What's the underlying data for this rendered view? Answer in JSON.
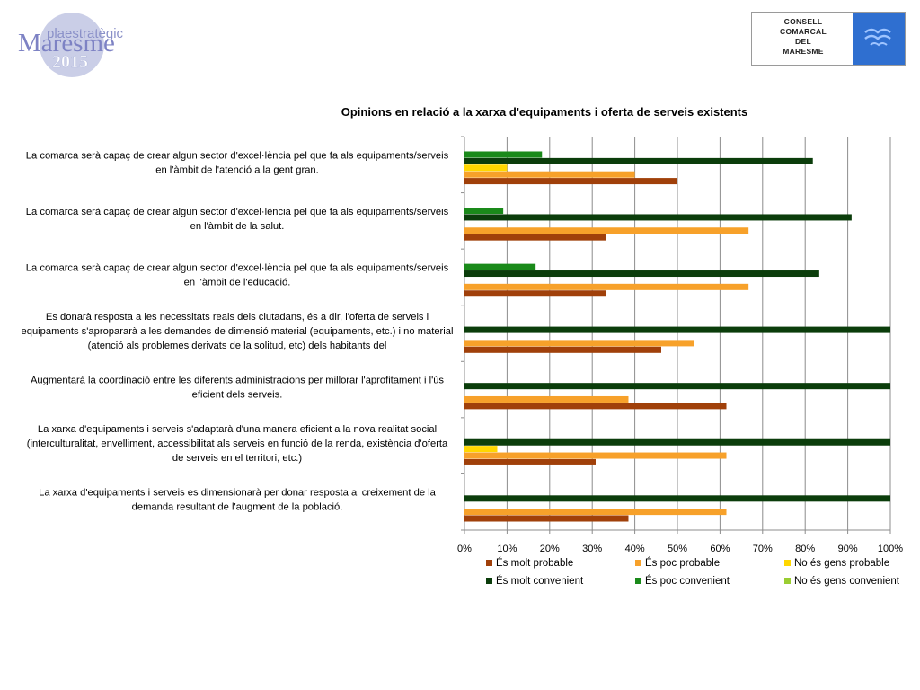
{
  "logos": {
    "left": {
      "line1": "plaestratègic",
      "line2": "Maresme",
      "line3": "2015"
    },
    "right": {
      "lines": [
        "CONSELL",
        "COMARCAL",
        "DEL",
        "MARESME"
      ]
    }
  },
  "chart_data": {
    "type": "bar",
    "orientation": "horizontal",
    "title": "Opinions en relació a la xarxa d'equipaments i oferta de serveis existents",
    "xlim": [
      0,
      100
    ],
    "x_ticks": [
      "0%",
      "10%",
      "20%",
      "30%",
      "40%",
      "50%",
      "60%",
      "70%",
      "80%",
      "90%",
      "100%"
    ],
    "grid": true,
    "legend_position": "bottom",
    "categories": [
      [
        "La comarca serà capaç de crear algun sector d'excel·lència pel que fa als equipaments/serveis",
        "en l'àmbit de l'atenció a la gent gran."
      ],
      [
        "La comarca serà capaç de crear algun sector d'excel·lència pel que fa als equipaments/serveis",
        "en l'àmbit de la salut."
      ],
      [
        "La comarca serà capaç de crear algun sector d'excel·lència pel que fa als equipaments/serveis",
        "en l'àmbit de l'educació."
      ],
      [
        "Es donarà resposta a les necessitats reals dels ciutadans, és a dir, l'oferta de serveis i",
        "equipaments s'apropararà a les demandes de dimensió material (equipaments, etc.) i no material",
        "(atenció als problemes derivats de la solitud, etc) dels habitants del"
      ],
      [
        "Augmentarà la coordinació entre les diferents administracions per millorar l'aprofitament i l'ús",
        "eficient dels serveis."
      ],
      [
        "La xarxa d'equipaments i serveis s'adaptarà d'una manera eficient a la nova realitat social",
        "(interculturalitat, envelliment, accessibilitat als serveis en funció de la renda, existència d'oferta",
        "de serveis en el territori, etc.)"
      ],
      [
        "La xarxa d'equipaments i serveis es dimensionarà per donar resposta al creixement de la",
        "demanda resultant de l'augment de la població."
      ]
    ],
    "series": [
      {
        "name": "És molt probable",
        "color": "#a0400a",
        "values": [
          50,
          33.3,
          33.3,
          46.2,
          61.5,
          30.8,
          38.5
        ]
      },
      {
        "name": "És poc probable",
        "color": "#f7a12a",
        "values": [
          40,
          66.7,
          66.7,
          53.8,
          38.5,
          61.5,
          61.5
        ]
      },
      {
        "name": "No és gens probable",
        "color": "#ffd700",
        "values": [
          10,
          0,
          0,
          0,
          0,
          7.7,
          0
        ]
      },
      {
        "name": "És molt convenient",
        "color": "#0b3d0b",
        "values": [
          81.8,
          90.9,
          83.3,
          100,
          100,
          100,
          100
        ]
      },
      {
        "name": "És poc convenient",
        "color": "#1a8a1a",
        "values": [
          18.2,
          9.1,
          16.7,
          0,
          0,
          0,
          0
        ]
      },
      {
        "name": "No és gens convenient",
        "color": "#9acd32",
        "values": [
          0,
          0,
          0,
          0,
          0,
          0,
          0
        ]
      }
    ]
  }
}
